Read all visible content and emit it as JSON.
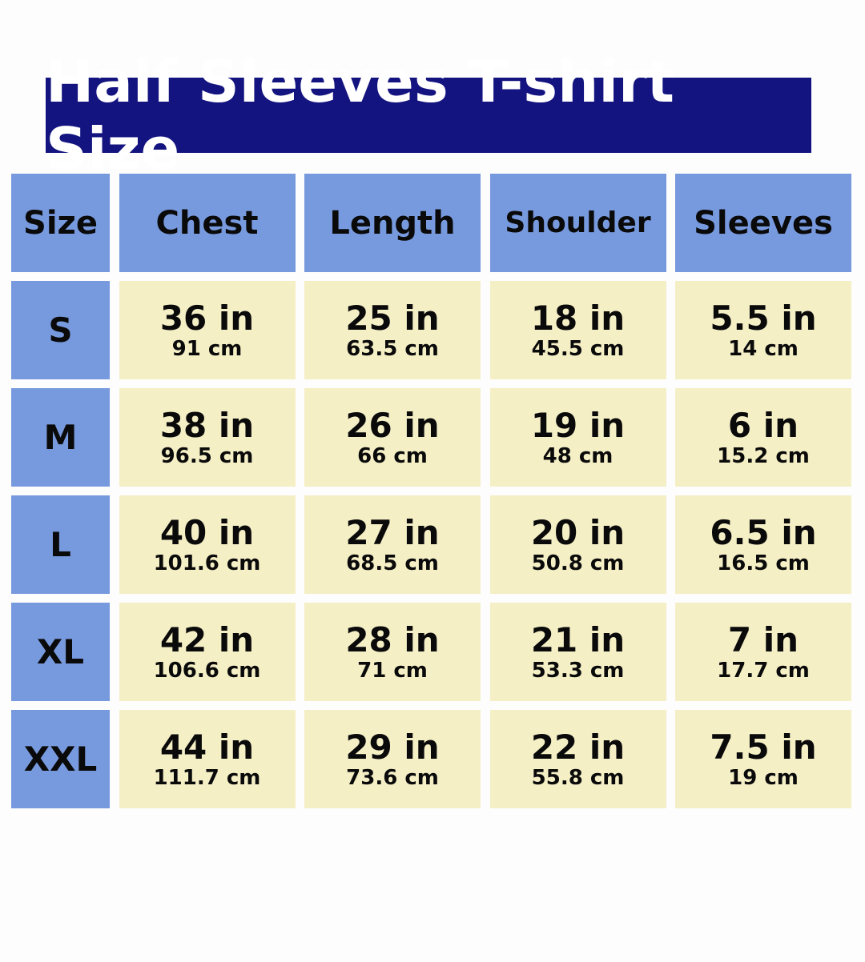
{
  "title": "Half Sleeves T-shirt Size",
  "colors": {
    "title_bg": "#141480",
    "header_bg": "#7799dd",
    "value_bg": "#f5efc6"
  },
  "headers": [
    "Size",
    "Chest",
    "Length",
    "Shoulder",
    "Sleeves"
  ],
  "rows": [
    {
      "size": "S",
      "values": [
        {
          "in": "36 in",
          "cm": "91 cm"
        },
        {
          "in": "25 in",
          "cm": "63.5 cm"
        },
        {
          "in": "18 in",
          "cm": "45.5 cm"
        },
        {
          "in": "5.5 in",
          "cm": "14 cm"
        }
      ]
    },
    {
      "size": "M",
      "values": [
        {
          "in": "38 in",
          "cm": "96.5 cm"
        },
        {
          "in": "26 in",
          "cm": "66 cm"
        },
        {
          "in": "19 in",
          "cm": "48 cm"
        },
        {
          "in": "6 in",
          "cm": "15.2 cm"
        }
      ]
    },
    {
      "size": "L",
      "values": [
        {
          "in": "40 in",
          "cm": "101.6 cm"
        },
        {
          "in": "27 in",
          "cm": "68.5 cm"
        },
        {
          "in": "20 in",
          "cm": "50.8 cm"
        },
        {
          "in": "6.5 in",
          "cm": "16.5 cm"
        }
      ]
    },
    {
      "size": "XL",
      "values": [
        {
          "in": "42 in",
          "cm": "106.6 cm"
        },
        {
          "in": "28 in",
          "cm": "71 cm"
        },
        {
          "in": "21 in",
          "cm": "53.3 cm"
        },
        {
          "in": "7 in",
          "cm": "17.7 cm"
        }
      ]
    },
    {
      "size": "XXL",
      "values": [
        {
          "in": "44 in",
          "cm": "111.7 cm"
        },
        {
          "in": "29 in",
          "cm": "73.6 cm"
        },
        {
          "in": "22 in",
          "cm": "55.8 cm"
        },
        {
          "in": "7.5 in",
          "cm": "19 cm"
        }
      ]
    }
  ]
}
